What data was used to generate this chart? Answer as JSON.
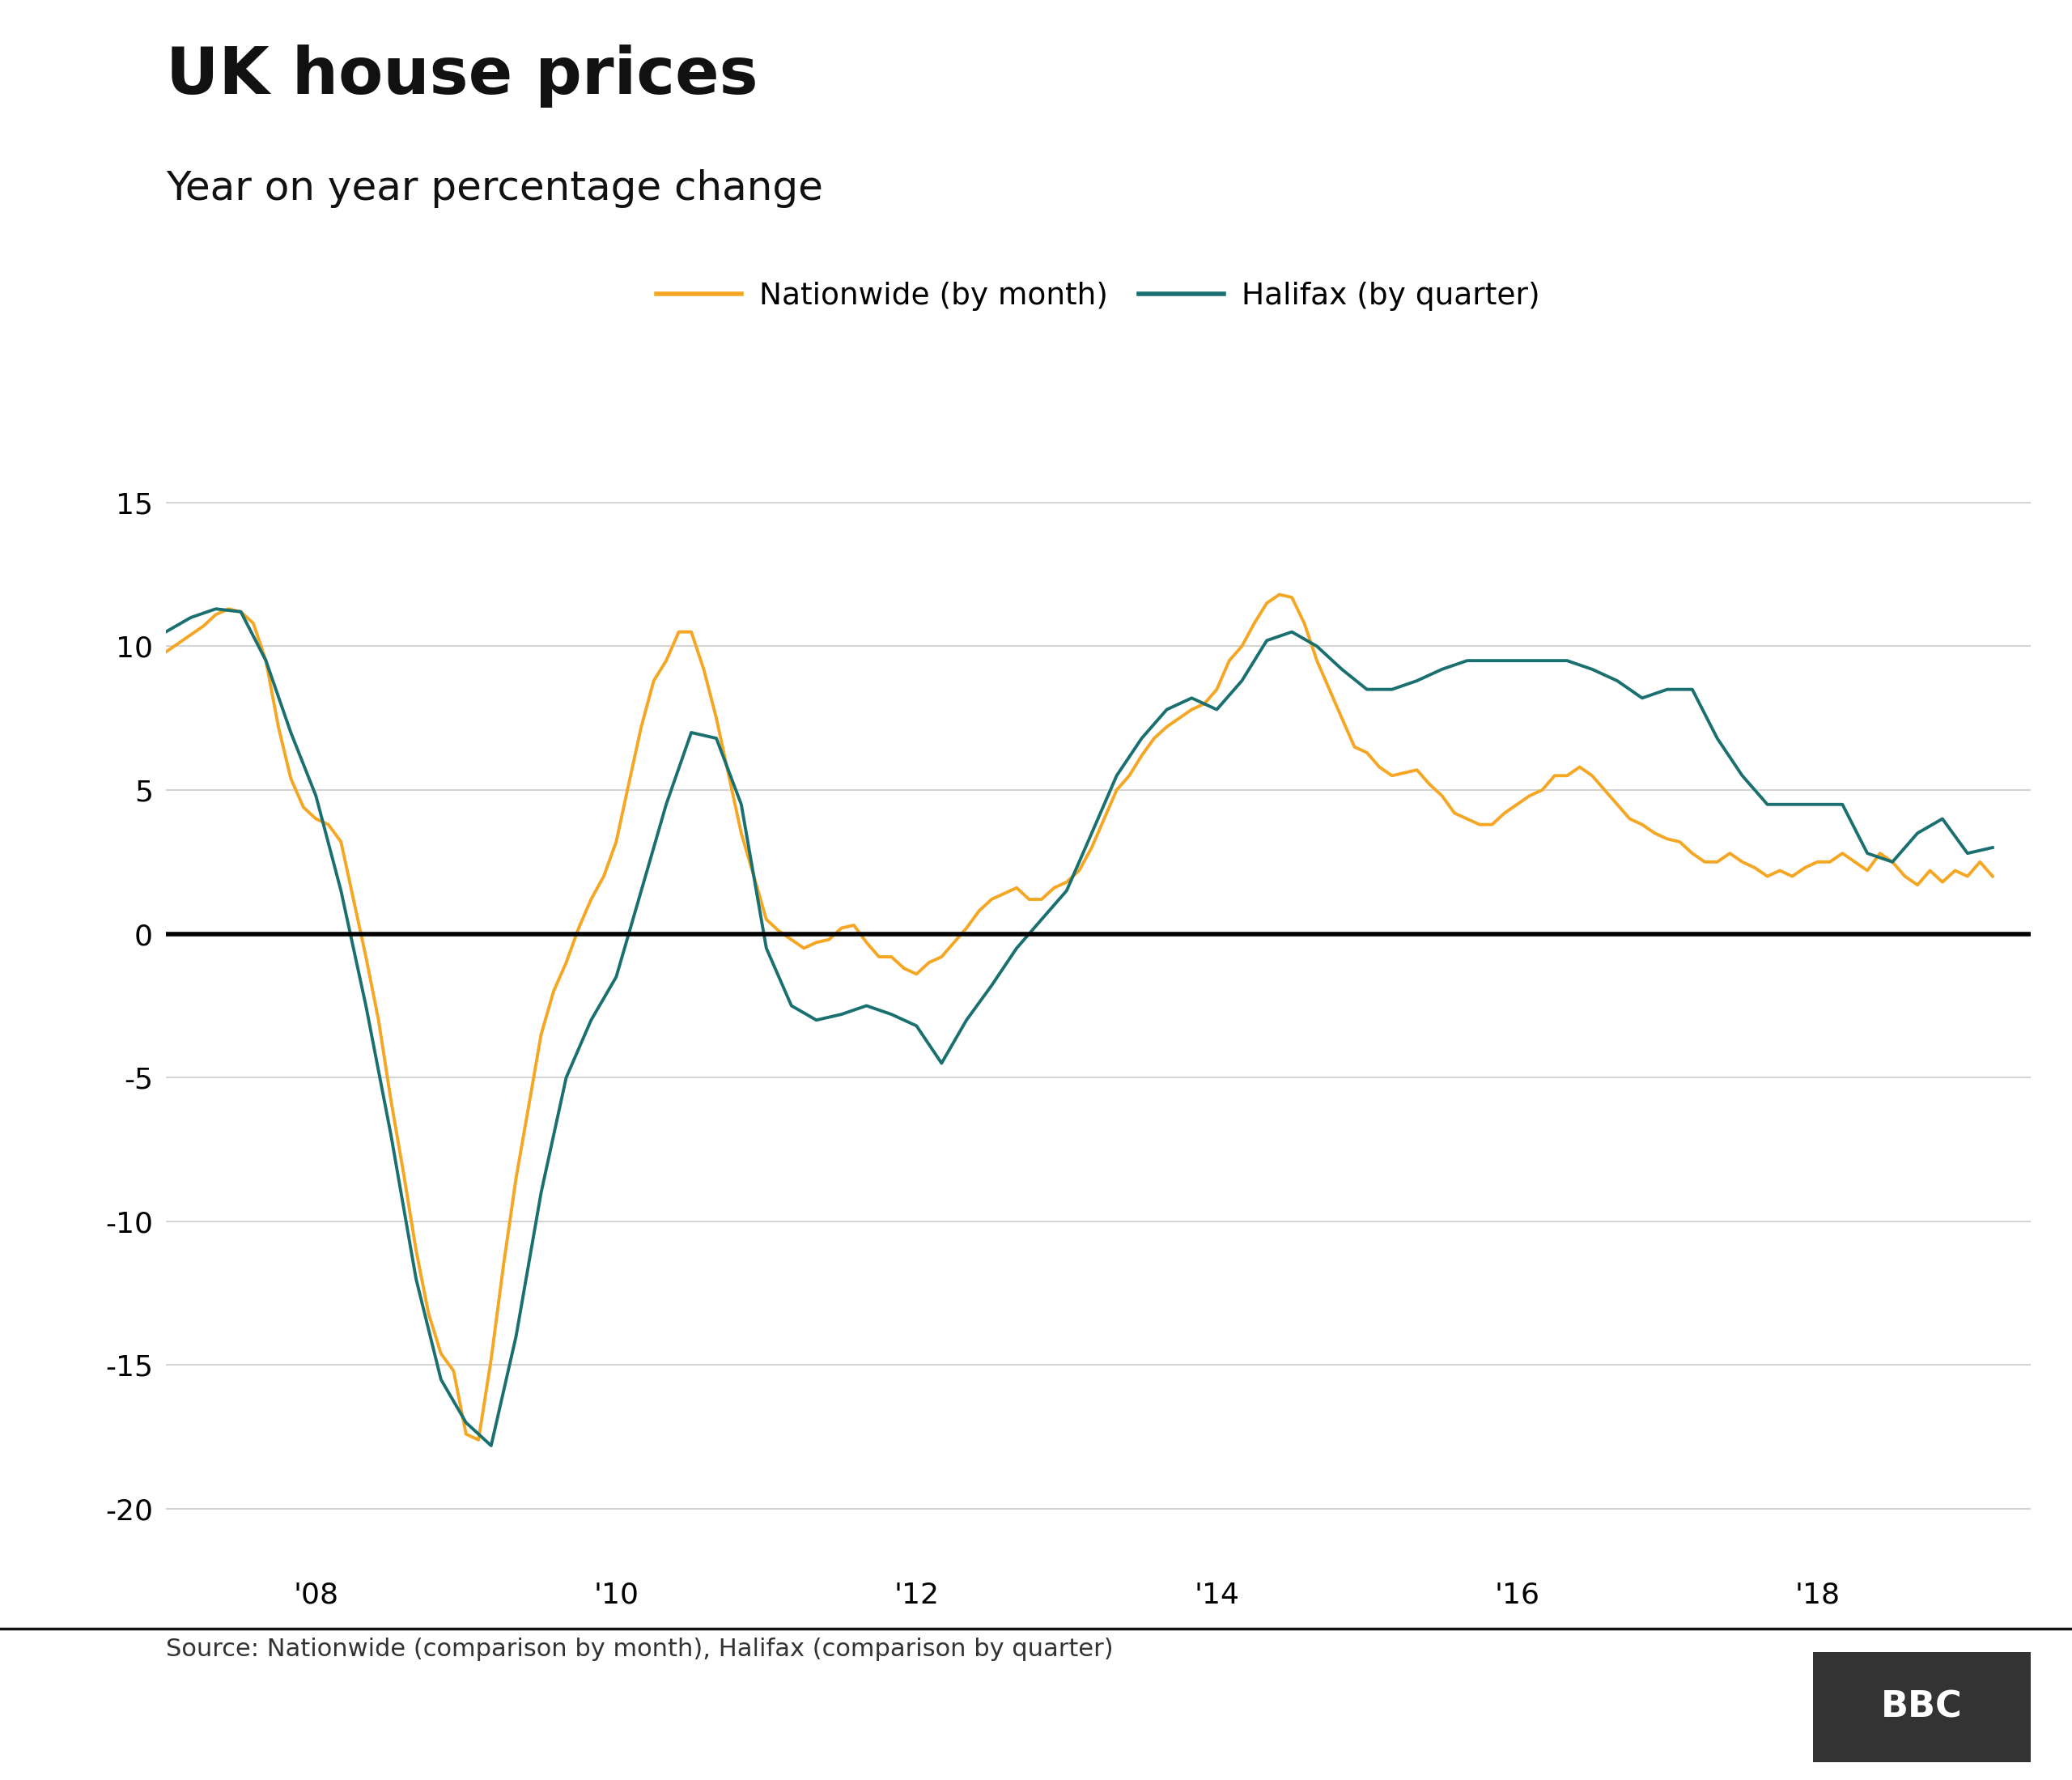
{
  "title": "UK house prices",
  "subtitle": "Year on year percentage change",
  "source": "Source: Nationwide (comparison by month), Halifax (comparison by quarter)",
  "nationwide_color": "#F5A623",
  "halifax_color": "#1A7070",
  "zero_line_color": "#000000",
  "grid_color": "#CCCCCC",
  "background_color": "#FFFFFF",
  "legend_nationwide": "Nationwide (by month)",
  "legend_halifax": "Halifax (by quarter)",
  "ylim": [
    -22,
    17
  ],
  "yticks": [
    -20,
    -15,
    -10,
    -5,
    0,
    5,
    10,
    15
  ],
  "xtick_years": [
    2008,
    2010,
    2012,
    2014,
    2016,
    2018
  ],
  "xtick_labels": [
    "'08",
    "'10",
    "'12",
    "'14",
    "'16",
    "'18"
  ],
  "nationwide_x": [
    2007.0,
    2007.083,
    2007.167,
    2007.25,
    2007.333,
    2007.417,
    2007.5,
    2007.583,
    2007.667,
    2007.75,
    2007.833,
    2007.917,
    2008.0,
    2008.083,
    2008.167,
    2008.25,
    2008.333,
    2008.417,
    2008.5,
    2008.583,
    2008.667,
    2008.75,
    2008.833,
    2008.917,
    2009.0,
    2009.083,
    2009.167,
    2009.25,
    2009.333,
    2009.417,
    2009.5,
    2009.583,
    2009.667,
    2009.75,
    2009.833,
    2009.917,
    2010.0,
    2010.083,
    2010.167,
    2010.25,
    2010.333,
    2010.417,
    2010.5,
    2010.583,
    2010.667,
    2010.75,
    2010.833,
    2010.917,
    2011.0,
    2011.083,
    2011.167,
    2011.25,
    2011.333,
    2011.417,
    2011.5,
    2011.583,
    2011.667,
    2011.75,
    2011.833,
    2011.917,
    2012.0,
    2012.083,
    2012.167,
    2012.25,
    2012.333,
    2012.417,
    2012.5,
    2012.583,
    2012.667,
    2012.75,
    2012.833,
    2012.917,
    2013.0,
    2013.083,
    2013.167,
    2013.25,
    2013.333,
    2013.417,
    2013.5,
    2013.583,
    2013.667,
    2013.75,
    2013.833,
    2013.917,
    2014.0,
    2014.083,
    2014.167,
    2014.25,
    2014.333,
    2014.417,
    2014.5,
    2014.583,
    2014.667,
    2014.75,
    2014.833,
    2014.917,
    2015.0,
    2015.083,
    2015.167,
    2015.25,
    2015.333,
    2015.417,
    2015.5,
    2015.583,
    2015.667,
    2015.75,
    2015.833,
    2015.917,
    2016.0,
    2016.083,
    2016.167,
    2016.25,
    2016.333,
    2016.417,
    2016.5,
    2016.583,
    2016.667,
    2016.75,
    2016.833,
    2016.917,
    2017.0,
    2017.083,
    2017.167,
    2017.25,
    2017.333,
    2017.417,
    2017.5,
    2017.583,
    2017.667,
    2017.75,
    2017.833,
    2017.917,
    2018.0,
    2018.083,
    2018.167,
    2018.25,
    2018.333,
    2018.417,
    2018.5,
    2018.583,
    2018.667,
    2018.75,
    2018.833,
    2018.917,
    2019.0,
    2019.083,
    2019.167
  ],
  "nationwide_y": [
    9.8,
    10.1,
    10.4,
    10.7,
    11.1,
    11.3,
    11.2,
    10.8,
    9.5,
    7.2,
    5.4,
    4.4,
    4.0,
    3.8,
    3.2,
    1.2,
    -0.8,
    -3.0,
    -5.8,
    -8.3,
    -11.0,
    -13.2,
    -14.6,
    -15.2,
    -17.4,
    -17.6,
    -14.8,
    -11.5,
    -8.5,
    -6.0,
    -3.5,
    -2.0,
    -1.0,
    0.2,
    1.2,
    2.0,
    3.2,
    5.2,
    7.2,
    8.8,
    9.5,
    10.5,
    10.5,
    9.2,
    7.5,
    5.5,
    3.5,
    2.0,
    0.5,
    0.1,
    -0.2,
    -0.5,
    -0.3,
    -0.2,
    0.2,
    0.3,
    -0.3,
    -0.8,
    -0.8,
    -1.2,
    -1.4,
    -1.0,
    -0.8,
    -0.3,
    0.2,
    0.8,
    1.2,
    1.4,
    1.6,
    1.2,
    1.2,
    1.6,
    1.8,
    2.2,
    3.0,
    4.0,
    5.0,
    5.5,
    6.2,
    6.8,
    7.2,
    7.5,
    7.8,
    8.0,
    8.5,
    9.5,
    10.0,
    10.8,
    11.5,
    11.8,
    11.7,
    10.8,
    9.5,
    8.5,
    7.5,
    6.5,
    6.3,
    5.8,
    5.5,
    5.6,
    5.7,
    5.2,
    4.8,
    4.2,
    4.0,
    3.8,
    3.8,
    4.2,
    4.5,
    4.8,
    5.0,
    5.5,
    5.5,
    5.8,
    5.5,
    5.0,
    4.5,
    4.0,
    3.8,
    3.5,
    3.3,
    3.2,
    2.8,
    2.5,
    2.5,
    2.8,
    2.5,
    2.3,
    2.0,
    2.2,
    2.0,
    2.3,
    2.5,
    2.5,
    2.8,
    2.5,
    2.2,
    2.8,
    2.5,
    2.0,
    1.7,
    2.2,
    1.8,
    2.2,
    2.0,
    2.5,
    2.0
  ],
  "halifax_x": [
    2007.0,
    2007.167,
    2007.333,
    2007.5,
    2007.667,
    2007.833,
    2008.0,
    2008.167,
    2008.333,
    2008.5,
    2008.667,
    2008.833,
    2009.0,
    2009.167,
    2009.333,
    2009.5,
    2009.667,
    2009.833,
    2010.0,
    2010.167,
    2010.333,
    2010.5,
    2010.667,
    2010.833,
    2011.0,
    2011.167,
    2011.333,
    2011.5,
    2011.667,
    2011.833,
    2012.0,
    2012.167,
    2012.333,
    2012.5,
    2012.667,
    2012.833,
    2013.0,
    2013.167,
    2013.333,
    2013.5,
    2013.667,
    2013.833,
    2014.0,
    2014.167,
    2014.333,
    2014.5,
    2014.667,
    2014.833,
    2015.0,
    2015.167,
    2015.333,
    2015.5,
    2015.667,
    2015.833,
    2016.0,
    2016.167,
    2016.333,
    2016.5,
    2016.667,
    2016.833,
    2017.0,
    2017.167,
    2017.333,
    2017.5,
    2017.667,
    2017.833,
    2018.0,
    2018.167,
    2018.333,
    2018.5,
    2018.667,
    2018.833,
    2019.0,
    2019.167
  ],
  "halifax_y": [
    10.5,
    11.0,
    11.3,
    11.2,
    9.5,
    7.0,
    4.8,
    1.5,
    -2.5,
    -7.0,
    -12.0,
    -15.5,
    -17.0,
    -17.8,
    -14.0,
    -9.0,
    -5.0,
    -3.0,
    -1.5,
    1.5,
    4.5,
    7.0,
    6.8,
    4.5,
    -0.5,
    -2.5,
    -3.0,
    -2.8,
    -2.5,
    -2.8,
    -3.2,
    -4.5,
    -3.0,
    -1.8,
    -0.5,
    0.5,
    1.5,
    3.5,
    5.5,
    6.8,
    7.8,
    8.2,
    7.8,
    8.8,
    10.2,
    10.5,
    10.0,
    9.2,
    8.5,
    8.5,
    8.8,
    9.2,
    9.5,
    9.5,
    9.5,
    9.5,
    9.5,
    9.2,
    8.8,
    8.2,
    8.5,
    8.5,
    6.8,
    5.5,
    4.5,
    4.5,
    4.5,
    4.5,
    2.8,
    2.5,
    3.5,
    4.0,
    2.8,
    3.0
  ]
}
